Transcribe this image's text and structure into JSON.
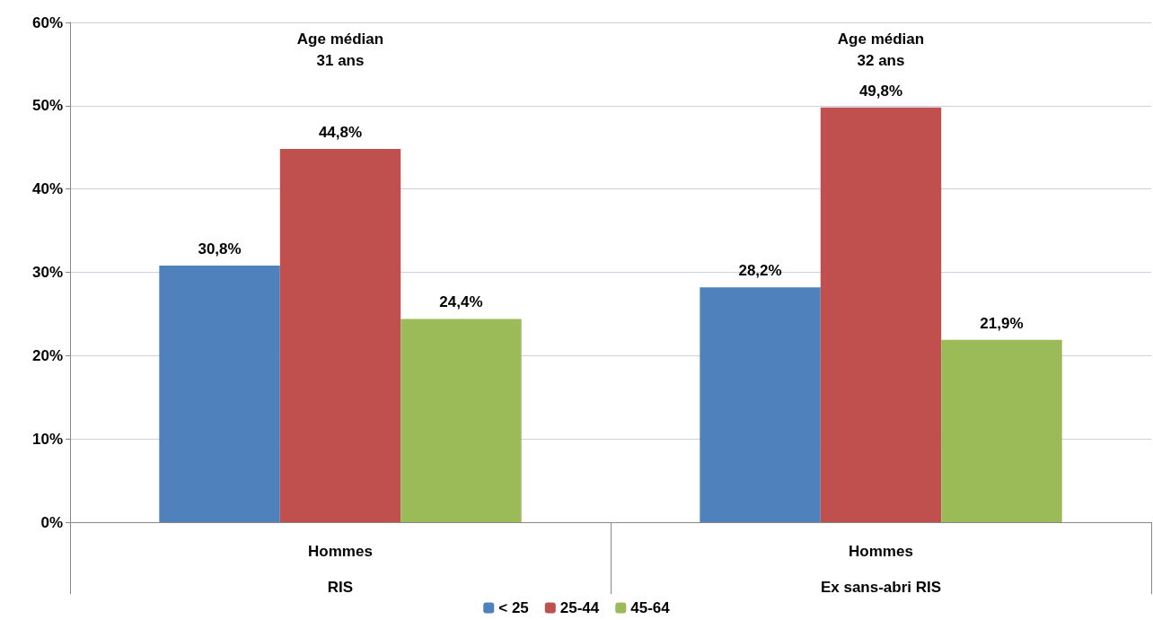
{
  "chart_data": {
    "type": "bar",
    "categories": [
      "Hommes\nRIS",
      "Hommes\nEx sans-abri RIS"
    ],
    "series": [
      {
        "name": "< 25",
        "color": "#4f81bd",
        "values": [
          30.8,
          28.2
        ],
        "value_labels": [
          "30,8%",
          "28,2%"
        ]
      },
      {
        "name": "25-44",
        "color": "#c0504d",
        "values": [
          44.8,
          49.8
        ],
        "value_labels": [
          "44,8%",
          "49,8%"
        ]
      },
      {
        "name": "45-64",
        "color": "#9bbb59",
        "values": [
          24.4,
          21.9
        ],
        "value_labels": [
          "24,4%",
          "21,9%"
        ]
      }
    ],
    "annotations": [
      "Age médian\n31 ans",
      "Age médian\n32 ans"
    ],
    "ylim": [
      0,
      60
    ],
    "yticks": [
      {
        "value": 0,
        "label": "0%"
      },
      {
        "value": 10,
        "label": "10%"
      },
      {
        "value": 20,
        "label": "20%"
      },
      {
        "value": 30,
        "label": "30%"
      },
      {
        "value": 40,
        "label": "40%"
      },
      {
        "value": 50,
        "label": "50%"
      },
      {
        "value": 60,
        "label": "60%"
      }
    ],
    "grid": "y",
    "legend": "bottom"
  }
}
